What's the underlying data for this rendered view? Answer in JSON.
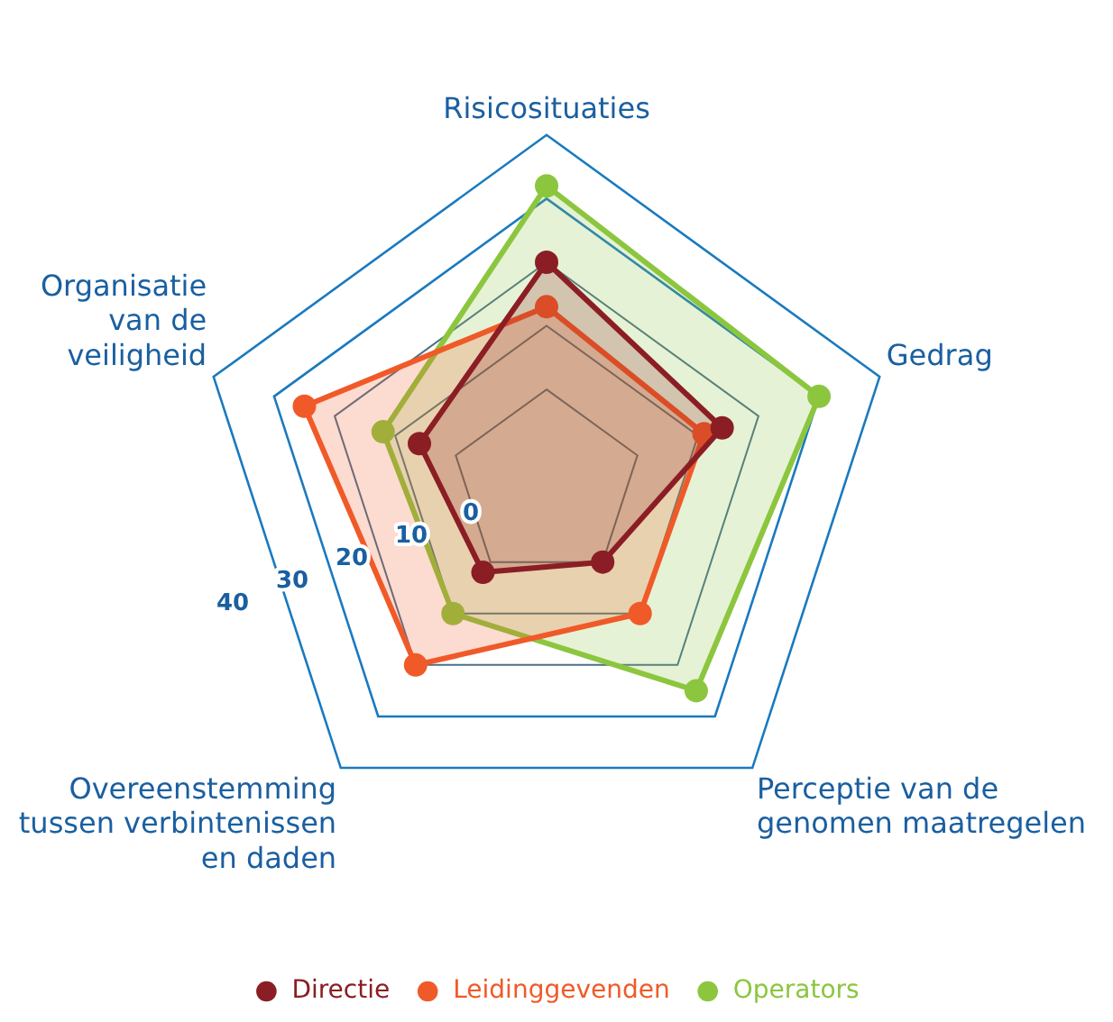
{
  "chart_data": {
    "type": "radar",
    "categories": [
      "Risicosituaties",
      "Gedrag",
      "Perceptie van de\ngenomen maatregelen",
      "Overeenstemming\ntussen verbintenissen\nen daden",
      "Organisatie\nvan de\nveiligheid"
    ],
    "series": [
      {
        "name": "Directie",
        "color": "#8b1e24",
        "values": [
          20,
          14,
          0,
          2,
          6
        ]
      },
      {
        "name": "Leidinggevenden",
        "color": "#f05a28",
        "values": [
          13,
          11,
          10,
          20,
          25
        ]
      },
      {
        "name": "Operators",
        "color": "#8cc63f",
        "values": [
          32,
          30,
          25,
          10,
          12
        ]
      }
    ],
    "ylim": [
      -15,
      40
    ],
    "yticks": [
      0,
      10,
      20,
      30,
      40
    ],
    "grid": true,
    "legend": "bottom",
    "marker": "circle"
  }
}
